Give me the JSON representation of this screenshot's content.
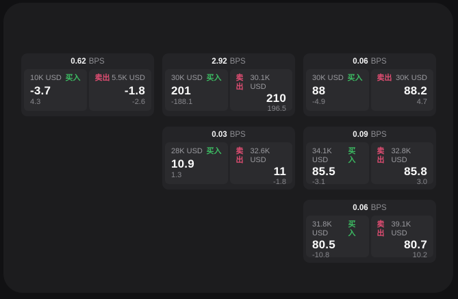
{
  "colors": {
    "background": "#111113",
    "surface": "#1c1c1e",
    "card": "#242427",
    "tile": "#2b2b2e",
    "buy_green": "#3cbb62",
    "sell_red": "#e04d72",
    "primary_text": "#fafafa",
    "muted_text": "#9a9a9f"
  },
  "bps_unit": "BPS",
  "buy_label": "买入",
  "sell_label": "卖出",
  "cards": [
    {
      "bps": "0.62",
      "buy": {
        "notional": "10K USD",
        "price": "-3.7",
        "delta": "4.3"
      },
      "sell": {
        "notional": "5.5K USD",
        "price": "-1.8",
        "delta": "-2.6"
      }
    },
    {
      "bps": "2.92",
      "buy": {
        "notional": "30K USD",
        "price": "201",
        "delta": "-188.1"
      },
      "sell": {
        "notional": "30.1K USD",
        "price": "210",
        "delta": "196.5"
      }
    },
    {
      "bps": "0.06",
      "buy": {
        "notional": "30K USD",
        "price": "88",
        "delta": "-4.9"
      },
      "sell": {
        "notional": "30K USD",
        "price": "88.2",
        "delta": "4.7"
      }
    },
    {
      "bps": "0.03",
      "buy": {
        "notional": "28K USD",
        "price": "10.9",
        "delta": "1.3"
      },
      "sell": {
        "notional": "32.6K USD",
        "price": "11",
        "delta": "-1.8"
      }
    },
    {
      "bps": "0.09",
      "buy": {
        "notional": "34.1K USD",
        "price": "85.5",
        "delta": "-3.1"
      },
      "sell": {
        "notional": "32.8K USD",
        "price": "85.8",
        "delta": "3.0"
      }
    },
    {
      "bps": "0.06",
      "buy": {
        "notional": "31.8K USD",
        "price": "80.5",
        "delta": "-10.8"
      },
      "sell": {
        "notional": "39.1K USD",
        "price": "80.7",
        "delta": "10.2"
      }
    }
  ]
}
